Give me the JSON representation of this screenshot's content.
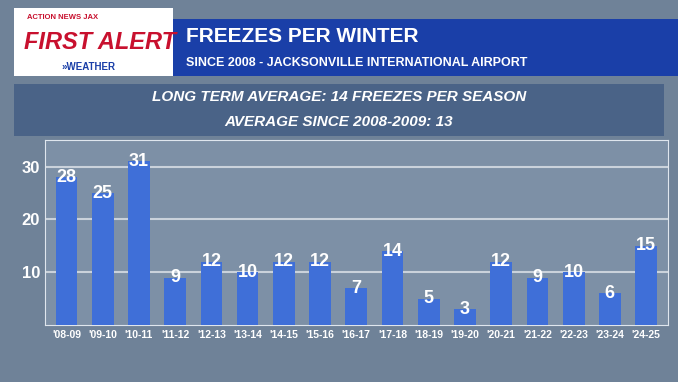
{
  "chart_data": {
    "type": "bar",
    "title": "FREEZES PER WINTER",
    "subtitle": "SINCE 2008 - JACKSONVILLE INTERNATIONAL AIRPORT",
    "logo": [
      "ACTION NEWS JAX",
      "FIRST ALERT",
      "»WEATHER"
    ],
    "annotations": [
      "LONG TERM AVERAGE: 14 FREEZES PER SEASON",
      "AVERAGE SINCE 2008-2009: 13"
    ],
    "categories": [
      "'08-09",
      "'09-10",
      "'10-11",
      "'11-12",
      "'12-13",
      "'13-14",
      "'14-15",
      "'15-16",
      "'16-17",
      "'17-18",
      "'18-19",
      "'19-20",
      "'20-21",
      "'21-22",
      "'22-23",
      "'23-24",
      "'24-25"
    ],
    "values": [
      28,
      25,
      31,
      9,
      12,
      10,
      12,
      12,
      7,
      14,
      5,
      3,
      12,
      9,
      10,
      6,
      15
    ],
    "color": "#3f6fd8",
    "ylim": [
      0,
      35
    ],
    "yticks": [
      10,
      20,
      30
    ],
    "grid": true,
    "data_labels": true
  }
}
